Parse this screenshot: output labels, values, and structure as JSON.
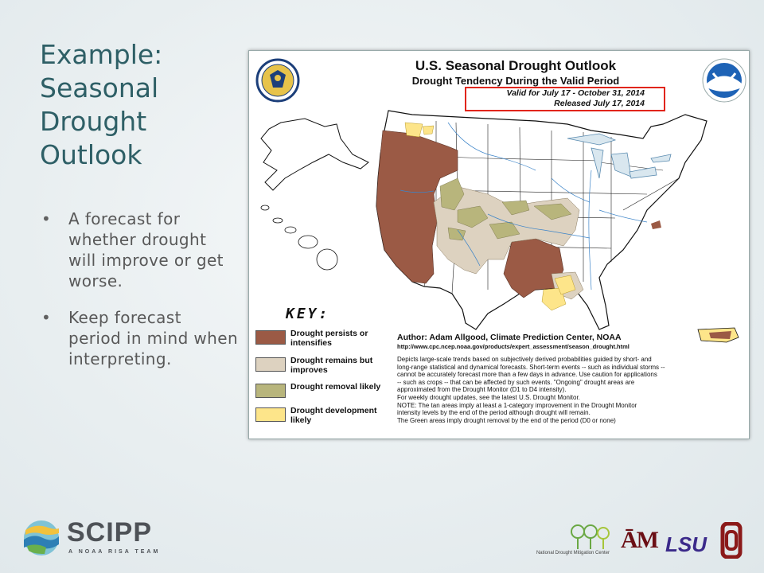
{
  "slide": {
    "title_lines": [
      "Example:",
      "Seasonal",
      "Drought",
      "Outlook"
    ],
    "bullets": [
      "A forecast for whether drought will improve or get worse.",
      "Keep forecast period in mind when interpreting."
    ]
  },
  "figure": {
    "title": "U.S. Seasonal Drought Outlook",
    "subtitle": "Drought Tendency During the Valid Period",
    "valid_period": "Valid for July 17 - October 31, 2014",
    "released": "Released July 17, 2014",
    "key_title": "KEY:",
    "key_items": [
      {
        "label": "Drought persists or intensifies",
        "color": "#9b5a45"
      },
      {
        "label": "Drought remains but improves",
        "color": "#ddd2c0"
      },
      {
        "label": "Drought removal likely",
        "color": "#b8b57c"
      },
      {
        "label": "Drought development likely",
        "color": "#fde58a"
      }
    ],
    "author": "Author: Adam Allgood, Climate Prediction Center, NOAA",
    "url": "http://www.cpc.ncep.noaa.gov/products/expert_assessment/season_drought.html",
    "description_lines": [
      "Depicts large-scale trends based on subjectively derived probabilities guided by short- and",
      "long-range statistical and dynamical forecasts. Short-term events -- such as individual storms --",
      "cannot be accurately forecast more than a few days in advance. Use caution for applications",
      "-- such as crops -- that can be affected by such events. \"Ongoing\" drought areas are",
      "approximated from the Drought Monitor (D1 to D4 intensity).",
      "For weekly drought updates, see the latest U.S. Drought Monitor.",
      "NOTE: The tan areas imply at least a 1-category improvement in the Drought Monitor",
      "intensity levels by the end of the period although drought will remain.",
      "The Green areas imply drought removal by the end of the period (D0 or none)"
    ],
    "emblems": [
      "commerce-seal-icon",
      "noaa-logo-icon"
    ]
  },
  "footer": {
    "scipp_word": "SCIPP",
    "scipp_tagline": "A NOAA RISA TEAM",
    "ndmc_text": "National Drought Mitigation Center",
    "tamu_text": "ĀM",
    "lsu_text": "LSU"
  },
  "colors": {
    "title": "#2e5f66",
    "text": "#585858",
    "persists": "#9b5a45",
    "improves": "#ddd2c0",
    "removal": "#b8b57c",
    "development": "#fde58a",
    "valid_box": "#e1251b"
  }
}
